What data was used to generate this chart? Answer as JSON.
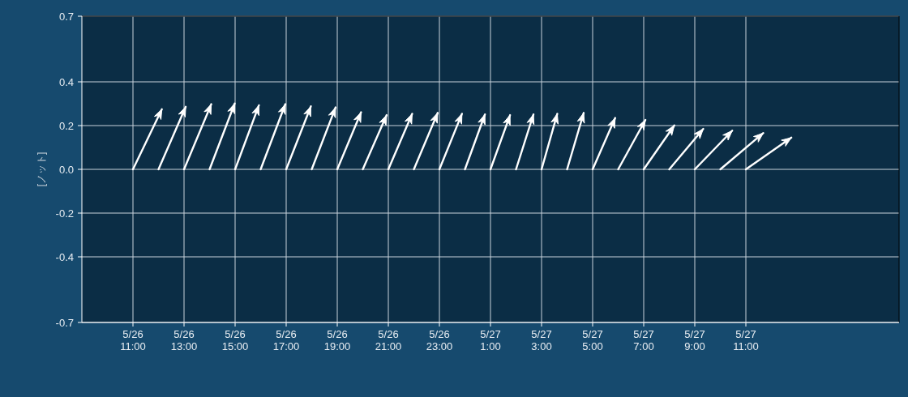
{
  "chart_data": {
    "type": "line",
    "ylabel": "[ノット]",
    "xlim": [
      "--05-26T09:00",
      "--05-27T17:00"
    ],
    "ylim": [
      -0.7,
      0.7
    ],
    "xticks": [
      {
        "value": "--05-26T11:00",
        "label": "5/26\n11:00"
      },
      {
        "value": "--05-26T13:00",
        "label": "5/26\n13:00"
      },
      {
        "value": "--05-26T15:00",
        "label": "5/26\n15:00"
      },
      {
        "value": "--05-26T17:00",
        "label": "5/26\n17:00"
      },
      {
        "value": "--05-26T19:00",
        "label": "5/26\n19:00"
      },
      {
        "value": "--05-26T21:00",
        "label": "5/26\n21:00"
      },
      {
        "value": "--05-26T23:00",
        "label": "5/26\n23:00"
      },
      {
        "value": "--05-27T01:00",
        "label": "5/27\n1:00"
      },
      {
        "value": "--05-27T03:00",
        "label": "5/27\n3:00"
      },
      {
        "value": "--05-27T05:00",
        "label": "5/27\n5:00"
      },
      {
        "value": "--05-27T07:00",
        "label": "5/27\n7:00"
      },
      {
        "value": "--05-27T09:00",
        "label": "5/27\n9:00"
      },
      {
        "value": "--05-27T11:00",
        "label": "5/27\n11:00"
      }
    ],
    "yticks": [
      -0.7,
      -0.4,
      -0.2,
      {
        "value": 0,
        "label": "0.0"
      },
      0.2,
      0.4,
      0.7
    ],
    "grid": true,
    "series": [
      {
        "color": "#ffffff",
        "x": [
          "--05-26T11:00",
          "--05-26T12:08"
        ],
        "values": [
          0,
          0.275
        ]
      },
      {
        "color": "#ffffff",
        "x": [
          "--05-26T12:00",
          "--05-26T13:04"
        ],
        "values": [
          0,
          0.286
        ]
      },
      {
        "color": "#ffffff",
        "x": [
          "--05-26T13:00",
          "--05-26T14:04"
        ],
        "values": [
          0,
          0.298
        ]
      },
      {
        "color": "#ffffff",
        "x": [
          "--05-26T14:00",
          "--05-26T14:59"
        ],
        "values": [
          0,
          0.301
        ]
      },
      {
        "color": "#ffffff",
        "x": [
          "--05-26T15:00",
          "--05-26T15:56"
        ],
        "values": [
          0,
          0.293
        ]
      },
      {
        "color": "#ffffff",
        "x": [
          "--05-26T16:00",
          "--05-26T16:58"
        ],
        "values": [
          0,
          0.298
        ]
      },
      {
        "color": "#ffffff",
        "x": [
          "--05-26T17:00",
          "--05-26T17:58"
        ],
        "values": [
          0,
          0.288
        ]
      },
      {
        "color": "#ffffff",
        "x": [
          "--05-26T18:00",
          "--05-26T18:56"
        ],
        "values": [
          0,
          0.283
        ]
      },
      {
        "color": "#ffffff",
        "x": [
          "--05-26T19:00",
          "--05-26T19:56"
        ],
        "values": [
          0,
          0.261
        ]
      },
      {
        "color": "#ffffff",
        "x": [
          "--05-26T20:00",
          "--05-26T20:56"
        ],
        "values": [
          0,
          0.248
        ]
      },
      {
        "color": "#ffffff",
        "x": [
          "--05-26T21:00",
          "--05-26T21:56"
        ],
        "values": [
          0,
          0.254
        ]
      },
      {
        "color": "#ffffff",
        "x": [
          "--05-26T22:00",
          "--05-26T22:56"
        ],
        "values": [
          0,
          0.258
        ]
      },
      {
        "color": "#ffffff",
        "x": [
          "--05-26T23:00",
          "--05-26T23:53"
        ],
        "values": [
          0,
          0.254
        ]
      },
      {
        "color": "#ffffff",
        "x": [
          "--05-27T00:00",
          "--05-27T00:47"
        ],
        "values": [
          0,
          0.251
        ]
      },
      {
        "color": "#ffffff",
        "x": [
          "--05-27T01:00",
          "--05-27T01:46"
        ],
        "values": [
          0,
          0.248
        ]
      },
      {
        "color": "#ffffff",
        "x": [
          "--05-27T02:00",
          "--05-27T02:41"
        ],
        "values": [
          0,
          0.251
        ]
      },
      {
        "color": "#ffffff",
        "x": [
          "--05-27T03:00",
          "--05-27T03:37"
        ],
        "values": [
          0,
          0.254
        ]
      },
      {
        "color": "#ffffff",
        "x": [
          "--05-27T04:00",
          "--05-27T04:39"
        ],
        "values": [
          0,
          0.258
        ]
      },
      {
        "color": "#ffffff",
        "x": [
          "--05-27T05:00",
          "--05-27T05:53"
        ],
        "values": [
          0,
          0.235
        ]
      },
      {
        "color": "#ffffff",
        "x": [
          "--05-27T06:00",
          "--05-27T07:04"
        ],
        "values": [
          0,
          0.226
        ]
      },
      {
        "color": "#ffffff",
        "x": [
          "--05-27T07:00",
          "--05-27T08:12"
        ],
        "values": [
          0,
          0.201
        ]
      },
      {
        "color": "#ffffff",
        "x": [
          "--05-27T08:00",
          "--05-27T09:20"
        ],
        "values": [
          0,
          0.185
        ]
      },
      {
        "color": "#ffffff",
        "x": [
          "--05-27T09:00",
          "--05-27T10:28"
        ],
        "values": [
          0,
          0.177
        ]
      },
      {
        "color": "#ffffff",
        "x": [
          "--05-27T10:00",
          "--05-27T11:41"
        ],
        "values": [
          0,
          0.166
        ]
      },
      {
        "color": "#ffffff",
        "x": [
          "--05-27T11:00",
          "--05-27T12:47"
        ],
        "values": [
          0,
          0.145
        ]
      }
    ]
  }
}
